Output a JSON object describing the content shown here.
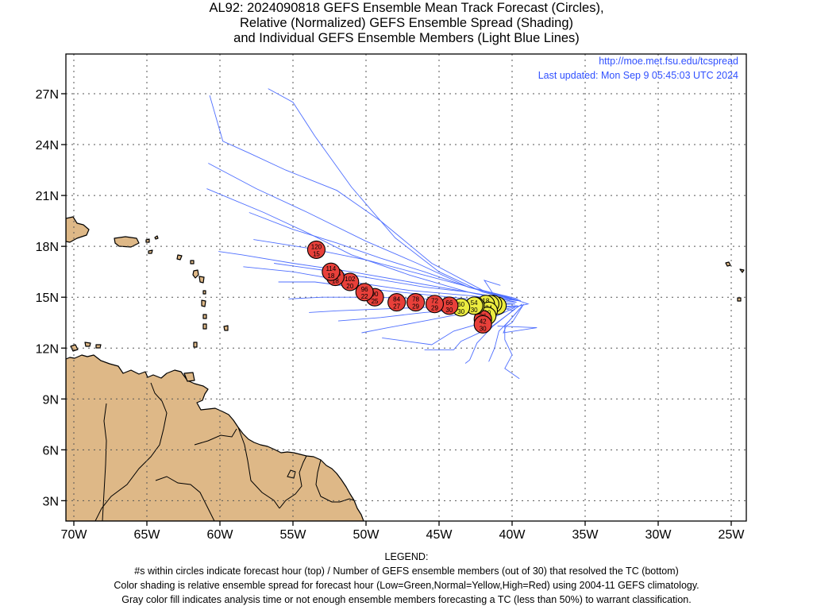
{
  "title": {
    "line1": "AL92: 2024090818 GEFS Ensemble Mean Track Forecast (Circles),",
    "line2": "Relative (Normalized) GEFS Ensemble Spread (Shading)",
    "line3": "and Individual GEFS Ensemble Members (Light Blue Lines)"
  },
  "url": "http://moe.met.fsu.edu/tcspread",
  "updated": "Last updated: Mon Sep 9 05:45:03 UTC 2024",
  "axes": {
    "lon_labels": [
      "70W",
      "65W",
      "60W",
      "55W",
      "50W",
      "45W",
      "40W",
      "35W",
      "30W",
      "25W"
    ],
    "lat_labels": [
      "27N",
      "24N",
      "21N",
      "18N",
      "15N",
      "12N",
      "9N",
      "6N",
      "3N"
    ]
  },
  "legend": {
    "heading": "LEGEND:",
    "line1": "#s within circles indicate forecast hour (top) / Number of GEFS ensemble members (out of 30) that resolved the TC (bottom)",
    "line2": "Color shading is relative ensemble spread for forecast hour (Low=Green,Normal=Yellow,High=Red) using 2004-11 GEFS climatology.",
    "line3": "Gray color fill indicates analysis time or not enough ensemble members forecasting a TC (less than 50%) to warrant classification."
  },
  "colors": {
    "land": "#deb887",
    "member_track": "#4f6fff",
    "high_spread": "#e8403a",
    "normal_spread": "#ecec40",
    "grid": "#555555",
    "url_text": "#3050ff"
  },
  "chart_data": {
    "type": "map-track",
    "ensemble_mean_track": [
      {
        "hour": "0",
        "members": "",
        "lon": -41.0,
        "lat": 14.5,
        "spread": "normal"
      },
      {
        "hour": "6",
        "members": "30",
        "lon": -41.3,
        "lat": 14.6,
        "spread": "normal"
      },
      {
        "hour": "12",
        "members": "30",
        "lon": -41.5,
        "lat": 14.6,
        "spread": "normal"
      },
      {
        "hour": "18",
        "members": "30",
        "lon": -41.8,
        "lat": 14.6,
        "spread": "normal"
      },
      {
        "hour": "24",
        "members": "30",
        "lon": -41.6,
        "lat": 14.2,
        "spread": "normal"
      },
      {
        "hour": "30",
        "members": "30",
        "lon": -41.7,
        "lat": 13.9,
        "spread": "normal"
      },
      {
        "hour": "36",
        "members": "30",
        "lon": -42.0,
        "lat": 13.7,
        "spread": "high"
      },
      {
        "hour": "42",
        "members": "30",
        "lon": -42.0,
        "lat": 13.4,
        "spread": "high"
      },
      {
        "hour": "48",
        "members": "30",
        "lon": -42.5,
        "lat": 14.5,
        "spread": "normal"
      },
      {
        "hour": "54",
        "members": "30",
        "lon": -42.6,
        "lat": 14.5,
        "spread": "normal"
      },
      {
        "hour": "60",
        "members": "30",
        "lon": -43.5,
        "lat": 14.4,
        "spread": "normal"
      },
      {
        "hour": "66",
        "members": "30",
        "lon": -44.3,
        "lat": 14.5,
        "spread": "high"
      },
      {
        "hour": "72",
        "members": "29",
        "lon": -45.3,
        "lat": 14.6,
        "spread": "high"
      },
      {
        "hour": "78",
        "members": "29",
        "lon": -46.6,
        "lat": 14.7,
        "spread": "high"
      },
      {
        "hour": "84",
        "members": "27",
        "lon": -47.9,
        "lat": 14.7,
        "spread": "high"
      },
      {
        "hour": "90",
        "members": "25",
        "lon": -49.4,
        "lat": 15.0,
        "spread": "high"
      },
      {
        "hour": "96",
        "members": "22",
        "lon": -50.1,
        "lat": 15.3,
        "spread": "high"
      },
      {
        "hour": "102",
        "members": "20",
        "lon": -51.1,
        "lat": 15.9,
        "spread": "high"
      },
      {
        "hour": "108",
        "members": "18",
        "lon": -52.1,
        "lat": 16.2,
        "spread": "high"
      },
      {
        "hour": "114",
        "members": "18",
        "lon": -52.4,
        "lat": 16.5,
        "spread": "high"
      },
      {
        "hour": "120",
        "members": "15",
        "lon": -53.4,
        "lat": 17.8,
        "spread": "high"
      }
    ],
    "member_tracks": [
      [
        [
          -39.6,
          14.8
        ],
        [
          -42,
          15.3
        ],
        [
          -45,
          16.5
        ],
        [
          -48,
          18.5
        ],
        [
          -51,
          21.5
        ],
        [
          -53.5,
          24.5
        ],
        [
          -55,
          26.5
        ],
        [
          -56.7,
          27.3
        ]
      ],
      [
        [
          -39.5,
          14.8
        ],
        [
          -42,
          15.4
        ],
        [
          -45.5,
          17
        ],
        [
          -49,
          19.5
        ],
        [
          -52,
          21.3
        ],
        [
          -55.5,
          22.5
        ],
        [
          -58,
          23.5
        ],
        [
          -59.8,
          24.2
        ],
        [
          -60.7,
          26.9
        ]
      ],
      [
        [
          -39.6,
          14.8
        ],
        [
          -43,
          15.6
        ],
        [
          -46.5,
          17
        ],
        [
          -50,
          18.3
        ],
        [
          -54,
          20
        ],
        [
          -57.5,
          21.4
        ],
        [
          -60.8,
          22.9
        ]
      ],
      [
        [
          -39.7,
          14.7
        ],
        [
          -43,
          15.3
        ],
        [
          -47,
          16.3
        ],
        [
          -51,
          17.5
        ],
        [
          -54,
          18.8
        ],
        [
          -57,
          20
        ],
        [
          -60.9,
          21.4
        ]
      ],
      [
        [
          -39.7,
          14.8
        ],
        [
          -43,
          15.6
        ],
        [
          -46,
          16.5
        ],
        [
          -49,
          17.3
        ],
        [
          -52,
          18.2
        ],
        [
          -55,
          19
        ],
        [
          -58,
          20
        ]
      ],
      [
        [
          -39.6,
          14.9
        ],
        [
          -42.5,
          15.5
        ],
        [
          -46,
          16.3
        ],
        [
          -50,
          17.2
        ],
        [
          -54,
          17.9
        ],
        [
          -57.7,
          18.4
        ]
      ],
      [
        [
          -39.7,
          14.7
        ],
        [
          -43,
          15.3
        ],
        [
          -47,
          15.9
        ],
        [
          -51,
          16.5
        ],
        [
          -55,
          17
        ],
        [
          -58.5,
          17.5
        ],
        [
          -60.1,
          17.7
        ]
      ],
      [
        [
          -39.6,
          14.8
        ],
        [
          -43,
          15.1
        ],
        [
          -47,
          15.4
        ],
        [
          -51,
          15.9
        ],
        [
          -55,
          16.5
        ],
        [
          -58.4,
          16.8
        ]
      ],
      [
        [
          -39.5,
          14.8
        ],
        [
          -43,
          15.3
        ],
        [
          -46,
          15.6
        ],
        [
          -49.5,
          16.1
        ],
        [
          -53,
          16.6
        ],
        [
          -56.3,
          17.0
        ]
      ],
      [
        [
          -39.8,
          14.7
        ],
        [
          -43,
          14.9
        ],
        [
          -46.5,
          15.2
        ],
        [
          -50,
          15.5
        ],
        [
          -53.5,
          15.9
        ],
        [
          -56.0,
          15.9
        ]
      ],
      [
        [
          -39.8,
          14.6
        ],
        [
          -43,
          14.8
        ],
        [
          -46,
          14.9
        ],
        [
          -49.5,
          15.0
        ],
        [
          -53,
          15.0
        ],
        [
          -55.3,
          14.9
        ]
      ],
      [
        [
          -39.8,
          14.6
        ],
        [
          -43,
          14.5
        ],
        [
          -46,
          14.4
        ],
        [
          -49,
          14.3
        ],
        [
          -52,
          14.2
        ],
        [
          -53.9,
          14.1
        ]
      ],
      [
        [
          -39.7,
          14.5
        ],
        [
          -43,
          14.3
        ],
        [
          -46,
          14.1
        ],
        [
          -49,
          13.8
        ],
        [
          -51.9,
          13.6
        ]
      ],
      [
        [
          -39.6,
          14.5
        ],
        [
          -43,
          14.1
        ],
        [
          -46,
          13.6
        ],
        [
          -48.5,
          13.2
        ],
        [
          -50.3,
          12.9
        ]
      ],
      [
        [
          -39.8,
          14.4
        ],
        [
          -42,
          13.5
        ],
        [
          -44,
          13.0
        ],
        [
          -45.5,
          12.2
        ],
        [
          -48.9,
          12.6
        ]
      ],
      [
        [
          -39.8,
          14.3
        ],
        [
          -41.5,
          13.2
        ],
        [
          -42.5,
          12.8
        ],
        [
          -43.5,
          12.4
        ],
        [
          -44,
          11.9
        ],
        [
          -46,
          11.9
        ]
      ],
      [
        [
          -39.8,
          14.3
        ],
        [
          -41.3,
          13.3
        ],
        [
          -42.4,
          12.3
        ],
        [
          -42.9,
          11.3
        ],
        [
          -43.2,
          11.1
        ]
      ],
      [
        [
          -39.5,
          14.3
        ],
        [
          -40.5,
          13.3
        ],
        [
          -40.5,
          12.5
        ],
        [
          -40.0,
          11.6
        ],
        [
          -40.5,
          10.8
        ],
        [
          -39.5,
          10.2
        ]
      ],
      [
        [
          -39.3,
          14.5
        ],
        [
          -40.2,
          13.6
        ],
        [
          -40.9,
          13.0
        ],
        [
          -41.2,
          12.0
        ],
        [
          -41.6,
          11.2
        ]
      ],
      [
        [
          -39.2,
          14.6
        ],
        [
          -40.0,
          13.5
        ],
        [
          -40.4,
          13.3
        ],
        [
          -40.6,
          12.9
        ],
        [
          -38.3,
          13.2
        ],
        [
          -41.0,
          13.3
        ]
      ],
      [
        [
          -39.4,
          14.8
        ],
        [
          -41.3,
          15.2
        ],
        [
          -41.9,
          16.0
        ],
        [
          -40.8,
          15.7
        ]
      ],
      [
        [
          -39.3,
          14.6
        ],
        [
          -40.0,
          14.2
        ],
        [
          -40.4,
          14.3
        ],
        [
          -38.9,
          14.6
        ],
        [
          -40.6,
          15.1
        ]
      ]
    ]
  }
}
